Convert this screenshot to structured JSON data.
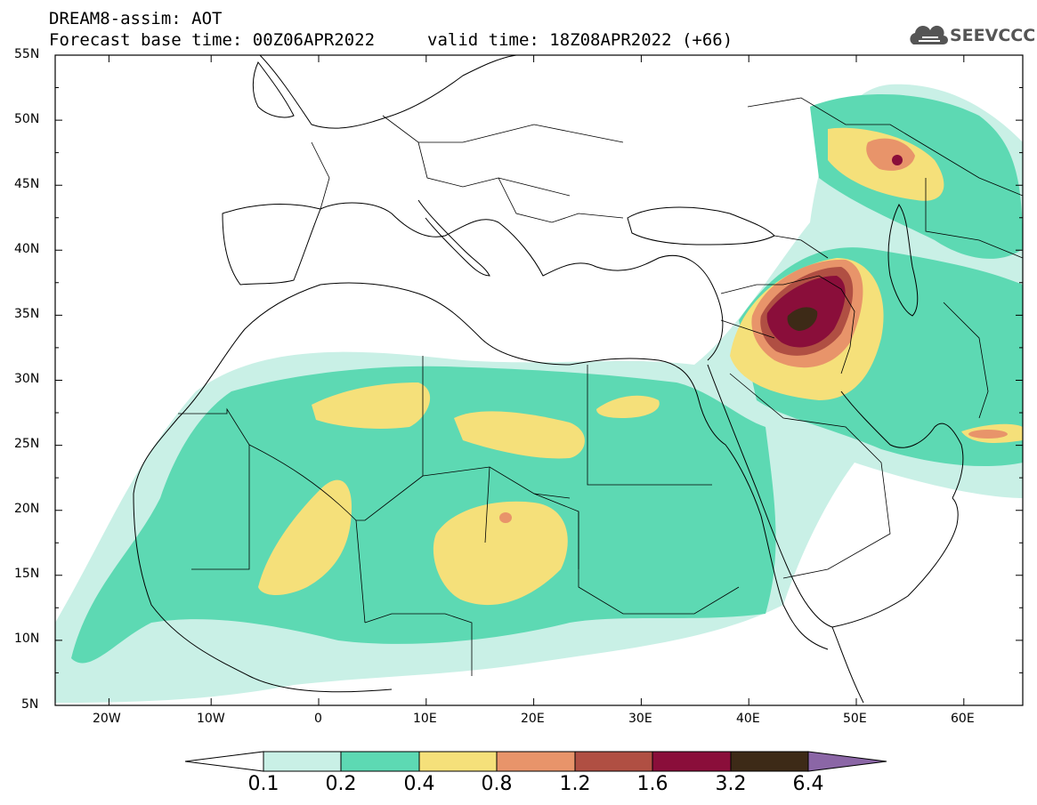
{
  "header": {
    "title_line1": "DREAM8-assim: AOT",
    "forecast_base": "Forecast base time: 00Z06APR2022",
    "valid_time": "valid time: 18Z08APR2022 (+66)",
    "logo_text": "SEEVCCC",
    "logo_icon": "cloud-icon"
  },
  "map": {
    "projection": "lat-lon",
    "lon_range": [
      -25,
      65
    ],
    "lat_range": [
      5,
      55
    ],
    "lat_labels": [
      "55N",
      "50N",
      "45N",
      "40N",
      "35N",
      "30N",
      "25N",
      "20N",
      "15N",
      "10N",
      "5N"
    ],
    "lon_labels": [
      "20W",
      "10W",
      "0",
      "10E",
      "20E",
      "30E",
      "40E",
      "50E",
      "60E"
    ],
    "features": [
      "coastlines",
      "country-borders"
    ],
    "highest_aot_region": "Iraq (~44E, 34N)"
  },
  "colorbar": {
    "labels": [
      "0.1",
      "0.2",
      "0.4",
      "0.8",
      "1.2",
      "1.6",
      "3.2",
      "6.4"
    ],
    "colors": [
      "#ffffff",
      "#c9f0e6",
      "#5dd9b3",
      "#f5e07a",
      "#e8946a",
      "#b04f43",
      "#8a0e3a",
      "#3d2a17",
      "#8b66a6"
    ]
  }
}
